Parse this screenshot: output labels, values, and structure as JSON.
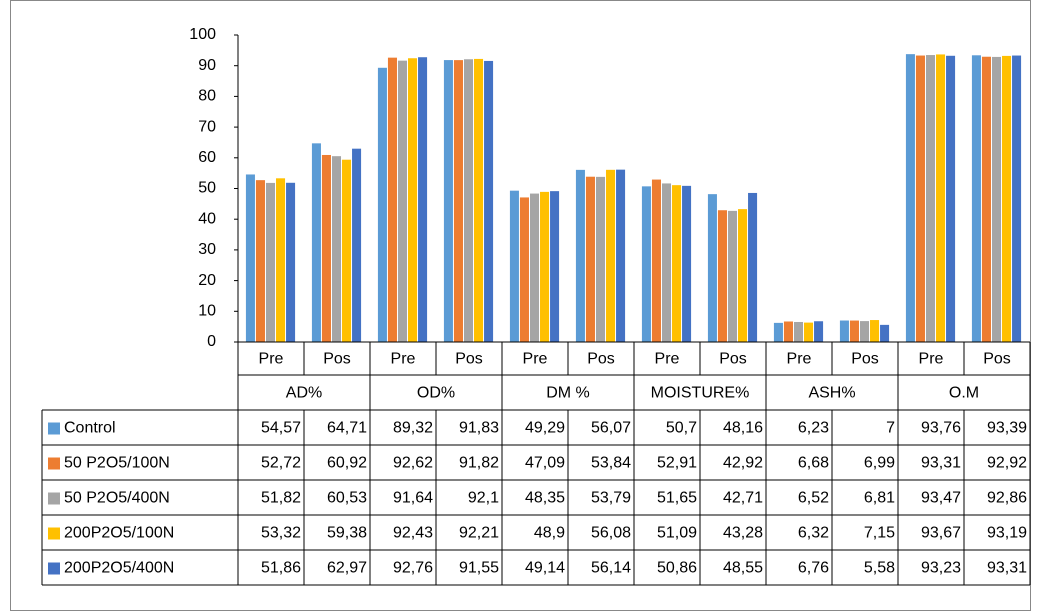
{
  "chart_data": {
    "type": "bar",
    "categories": [
      "Pre",
      "Pos",
      "Pre",
      "Pos",
      "Pre",
      "Pos",
      "Pre",
      "Pos",
      "Pre",
      "Pos",
      "Pre",
      "Pos"
    ],
    "groups": [
      "AD%",
      "OD%",
      "DM %",
      "MOISTURE%",
      "ASH%",
      "O.M"
    ],
    "ylim": [
      0,
      100
    ],
    "yticks": [
      0,
      10,
      20,
      30,
      40,
      50,
      60,
      70,
      80,
      90,
      100
    ],
    "grid": false,
    "series": [
      {
        "name": "Control",
        "color": "#5b9bd5",
        "values": [
          54.57,
          64.71,
          89.32,
          91.83,
          49.29,
          56.07,
          50.7,
          48.16,
          6.23,
          7,
          93.76,
          93.39
        ],
        "value_labels": [
          "54,57",
          "64,71",
          "89,32",
          "91,83",
          "49,29",
          "56,07",
          "50,7",
          "48,16",
          "6,23",
          "7",
          "93,76",
          "93,39"
        ]
      },
      {
        "name": "50 P2O5/100N",
        "color": "#ed7d31",
        "values": [
          52.72,
          60.92,
          92.62,
          91.82,
          47.09,
          53.84,
          52.91,
          42.92,
          6.68,
          6.99,
          93.31,
          92.92
        ],
        "value_labels": [
          "52,72",
          "60,92",
          "92,62",
          "91,82",
          "47,09",
          "53,84",
          "52,91",
          "42,92",
          "6,68",
          "6,99",
          "93,31",
          "92,92"
        ]
      },
      {
        "name": "50 P2O5/400N",
        "color": "#a5a5a5",
        "values": [
          51.82,
          60.53,
          91.64,
          92.1,
          48.35,
          53.79,
          51.65,
          42.71,
          6.52,
          6.81,
          93.47,
          92.86
        ],
        "value_labels": [
          "51,82",
          "60,53",
          "91,64",
          "92,1",
          "48,35",
          "53,79",
          "51,65",
          "42,71",
          "6,52",
          "6,81",
          "93,47",
          "92,86"
        ]
      },
      {
        "name": "200P2O5/100N",
        "color": "#ffc000",
        "values": [
          53.32,
          59.38,
          92.43,
          92.21,
          48.9,
          56.08,
          51.09,
          43.28,
          6.32,
          7.15,
          93.67,
          93.19
        ],
        "value_labels": [
          "53,32",
          "59,38",
          "92,43",
          "92,21",
          "48,9",
          "56,08",
          "51,09",
          "43,28",
          "6,32",
          "7,15",
          "93,67",
          "93,19"
        ]
      },
      {
        "name": "200P2O5/400N",
        "color": "#4472c4",
        "values": [
          51.86,
          62.97,
          92.76,
          91.55,
          49.14,
          56.14,
          50.86,
          48.55,
          6.76,
          5.58,
          93.23,
          93.31
        ],
        "value_labels": [
          "51,86",
          "62,97",
          "92,76",
          "91,55",
          "49,14",
          "56,14",
          "50,86",
          "48,55",
          "6,76",
          "5,58",
          "93,23",
          "93,31"
        ]
      }
    ]
  }
}
